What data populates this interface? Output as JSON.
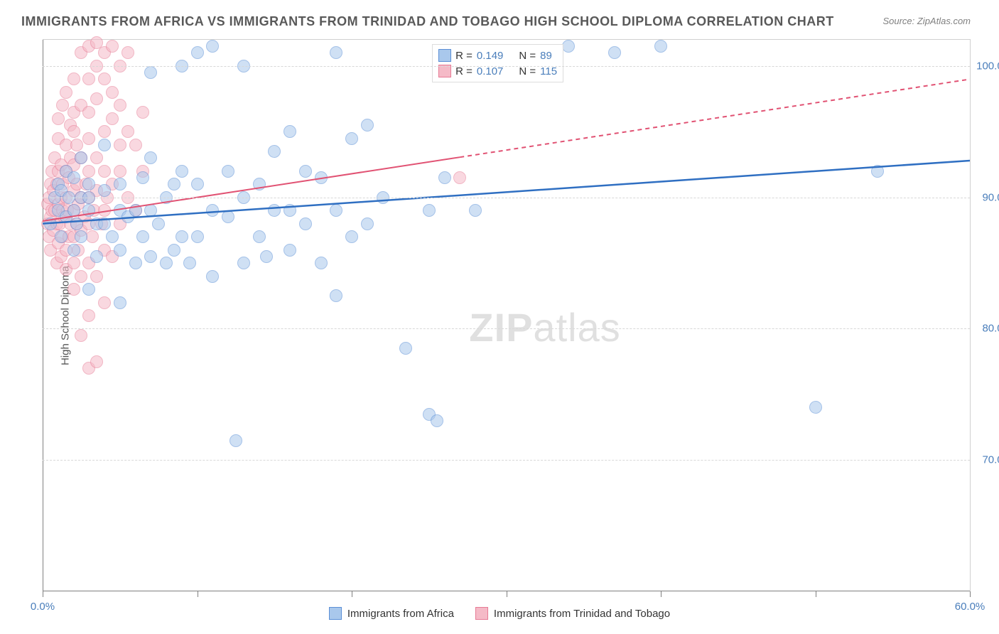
{
  "title": "IMMIGRANTS FROM AFRICA VS IMMIGRANTS FROM TRINIDAD AND TOBAGO HIGH SCHOOL DIPLOMA CORRELATION CHART",
  "source_label": "Source: ZipAtlas.com",
  "watermark_a": "ZIP",
  "watermark_b": "atlas",
  "chart": {
    "type": "scatter",
    "xlim": [
      0,
      60
    ],
    "ylim": [
      60,
      102
    ],
    "x_ticks": [
      0,
      10,
      20,
      30,
      40,
      50,
      60
    ],
    "x_tick_labels": {
      "0": "0.0%",
      "60": "60.0%"
    },
    "y_gridlines": [
      70,
      80,
      90,
      100
    ],
    "y_tick_labels": {
      "70": "70.0%",
      "80": "80.0%",
      "90": "90.0%",
      "100": "100.0%"
    },
    "y_axis_title": "High School Diploma",
    "background_color": "#ffffff",
    "grid_color": "#d8d8d8",
    "axis_color": "#808080",
    "tick_label_color": "#4a7ebb",
    "point_radius": 9,
    "point_opacity": 0.55,
    "series": [
      {
        "key": "africa",
        "label": "Immigrants from Africa",
        "color_fill": "#a9c8ec",
        "color_stroke": "#5b8fd6",
        "r_label": "R =",
        "r_value": "0.149",
        "n_label": "N =",
        "n_value": "89",
        "trend": {
          "x1": 0,
          "y1": 88.0,
          "x2": 60,
          "y2": 92.8,
          "solid_to_x": 60,
          "color": "#2f6fc2",
          "width": 2.5
        },
        "points": [
          [
            0.5,
            88
          ],
          [
            0.8,
            90
          ],
          [
            1,
            89
          ],
          [
            1,
            91
          ],
          [
            1.2,
            87
          ],
          [
            1.2,
            90.5
          ],
          [
            1.5,
            88.5
          ],
          [
            1.5,
            92
          ],
          [
            1.7,
            90
          ],
          [
            2,
            86
          ],
          [
            2,
            89
          ],
          [
            2,
            91.5
          ],
          [
            2.2,
            88
          ],
          [
            2.5,
            87
          ],
          [
            2.5,
            90
          ],
          [
            2.5,
            93
          ],
          [
            3,
            83
          ],
          [
            3,
            89
          ],
          [
            3,
            90
          ],
          [
            3,
            91
          ],
          [
            3.5,
            85.5
          ],
          [
            3.5,
            88
          ],
          [
            4,
            88
          ],
          [
            4,
            90.5
          ],
          [
            4,
            94
          ],
          [
            4.5,
            87
          ],
          [
            5,
            82
          ],
          [
            5,
            86
          ],
          [
            5,
            89
          ],
          [
            5,
            91
          ],
          [
            5.5,
            88.5
          ],
          [
            6,
            85
          ],
          [
            6,
            89
          ],
          [
            6.5,
            87
          ],
          [
            6.5,
            91.5
          ],
          [
            7,
            85.5
          ],
          [
            7,
            89
          ],
          [
            7,
            93
          ],
          [
            7,
            99.5
          ],
          [
            7.5,
            88
          ],
          [
            8,
            85
          ],
          [
            8,
            90
          ],
          [
            8.5,
            86
          ],
          [
            8.5,
            91
          ],
          [
            9,
            87
          ],
          [
            9,
            92
          ],
          [
            9,
            100
          ],
          [
            9.5,
            85
          ],
          [
            10,
            87
          ],
          [
            10,
            91
          ],
          [
            10,
            101
          ],
          [
            11,
            84
          ],
          [
            11,
            89
          ],
          [
            11,
            101.5
          ],
          [
            12,
            88.5
          ],
          [
            12,
            92
          ],
          [
            12.5,
            71.5
          ],
          [
            13,
            85
          ],
          [
            13,
            90
          ],
          [
            13,
            100
          ],
          [
            14,
            87
          ],
          [
            14,
            91
          ],
          [
            14.5,
            85.5
          ],
          [
            15,
            89
          ],
          [
            15,
            93.5
          ],
          [
            16,
            86
          ],
          [
            16,
            89
          ],
          [
            16,
            95
          ],
          [
            17,
            88
          ],
          [
            17,
            92
          ],
          [
            18,
            85
          ],
          [
            18,
            91.5
          ],
          [
            19,
            82.5
          ],
          [
            19,
            89
          ],
          [
            19,
            101
          ],
          [
            20,
            87
          ],
          [
            20,
            94.5
          ],
          [
            21,
            88
          ],
          [
            21,
            95.5
          ],
          [
            22,
            90
          ],
          [
            23.5,
            78.5
          ],
          [
            25,
            89
          ],
          [
            25,
            73.5
          ],
          [
            25.5,
            73
          ],
          [
            26,
            91.5
          ],
          [
            28,
            89
          ],
          [
            34,
            101.5
          ],
          [
            37,
            101
          ],
          [
            40,
            101.5
          ],
          [
            50,
            74
          ],
          [
            54,
            92
          ]
        ]
      },
      {
        "key": "trinidad",
        "label": "Immigrants from Trinidad and Tobago",
        "color_fill": "#f5bac7",
        "color_stroke": "#e77b95",
        "r_label": "R =",
        "r_value": "0.107",
        "n_label": "N =",
        "n_value": "115",
        "trend": {
          "x1": 0,
          "y1": 88.2,
          "x2": 60,
          "y2": 99.0,
          "solid_to_x": 27,
          "color": "#e15273",
          "width": 2
        },
        "points": [
          [
            0.3,
            88
          ],
          [
            0.3,
            89.5
          ],
          [
            0.4,
            87
          ],
          [
            0.4,
            90
          ],
          [
            0.5,
            91
          ],
          [
            0.5,
            88.5
          ],
          [
            0.5,
            86
          ],
          [
            0.6,
            89
          ],
          [
            0.6,
            92
          ],
          [
            0.7,
            87.5
          ],
          [
            0.7,
            90.5
          ],
          [
            0.8,
            89
          ],
          [
            0.8,
            93
          ],
          [
            0.9,
            85
          ],
          [
            0.9,
            88
          ],
          [
            0.9,
            91
          ],
          [
            1,
            86.5
          ],
          [
            1,
            89.5
          ],
          [
            1,
            92
          ],
          [
            1,
            94.5
          ],
          [
            1,
            96
          ],
          [
            1.1,
            88
          ],
          [
            1.2,
            85.5
          ],
          [
            1.2,
            90
          ],
          [
            1.2,
            92.5
          ],
          [
            1.3,
            87
          ],
          [
            1.3,
            89
          ],
          [
            1.3,
            91
          ],
          [
            1.3,
            97
          ],
          [
            1.4,
            88.5
          ],
          [
            1.5,
            84.5
          ],
          [
            1.5,
            86
          ],
          [
            1.5,
            90
          ],
          [
            1.5,
            92
          ],
          [
            1.5,
            94
          ],
          [
            1.5,
            98
          ],
          [
            1.6,
            89
          ],
          [
            1.7,
            87
          ],
          [
            1.7,
            91.5
          ],
          [
            1.8,
            88
          ],
          [
            1.8,
            93
          ],
          [
            1.8,
            95.5
          ],
          [
            2,
            83
          ],
          [
            2,
            85
          ],
          [
            2,
            87
          ],
          [
            2,
            89
          ],
          [
            2,
            90.5
          ],
          [
            2,
            92.5
          ],
          [
            2,
            95
          ],
          [
            2,
            96.5
          ],
          [
            2,
            99
          ],
          [
            2.2,
            88
          ],
          [
            2.2,
            91
          ],
          [
            2.2,
            94
          ],
          [
            2.3,
            86
          ],
          [
            2.3,
            89.5
          ],
          [
            2.5,
            79.5
          ],
          [
            2.5,
            84
          ],
          [
            2.5,
            87.5
          ],
          [
            2.5,
            90
          ],
          [
            2.5,
            93
          ],
          [
            2.5,
            97
          ],
          [
            2.5,
            101
          ],
          [
            2.7,
            88.5
          ],
          [
            2.8,
            91
          ],
          [
            3,
            77
          ],
          [
            3,
            81
          ],
          [
            3,
            85
          ],
          [
            3,
            88
          ],
          [
            3,
            90
          ],
          [
            3,
            92
          ],
          [
            3,
            94.5
          ],
          [
            3,
            96.5
          ],
          [
            3,
            99
          ],
          [
            3,
            101.5
          ],
          [
            3.2,
            87
          ],
          [
            3.3,
            89
          ],
          [
            3.5,
            77.5
          ],
          [
            3.5,
            84
          ],
          [
            3.5,
            90.5
          ],
          [
            3.5,
            93
          ],
          [
            3.5,
            97.5
          ],
          [
            3.5,
            100
          ],
          [
            3.5,
            101.8
          ],
          [
            3.8,
            88
          ],
          [
            4,
            82
          ],
          [
            4,
            86
          ],
          [
            4,
            89
          ],
          [
            4,
            92
          ],
          [
            4,
            95
          ],
          [
            4,
            99
          ],
          [
            4,
            101
          ],
          [
            4.2,
            90
          ],
          [
            4.5,
            85.5
          ],
          [
            4.5,
            91
          ],
          [
            4.5,
            96
          ],
          [
            4.5,
            98
          ],
          [
            4.5,
            101.5
          ],
          [
            5,
            88
          ],
          [
            5,
            92
          ],
          [
            5,
            94
          ],
          [
            5,
            97
          ],
          [
            5,
            100
          ],
          [
            5.5,
            90
          ],
          [
            5.5,
            95
          ],
          [
            5.5,
            101
          ],
          [
            6,
            89
          ],
          [
            6,
            94
          ],
          [
            6.5,
            92
          ],
          [
            6.5,
            96.5
          ],
          [
            27,
            91.5
          ]
        ]
      }
    ]
  },
  "legend_bottom": {
    "items": [
      {
        "color_fill": "#a9c8ec",
        "color_stroke": "#5b8fd6",
        "label": "Immigrants from Africa"
      },
      {
        "color_fill": "#f5bac7",
        "color_stroke": "#e77b95",
        "label": "Immigrants from Trinidad and Tobago"
      }
    ]
  }
}
